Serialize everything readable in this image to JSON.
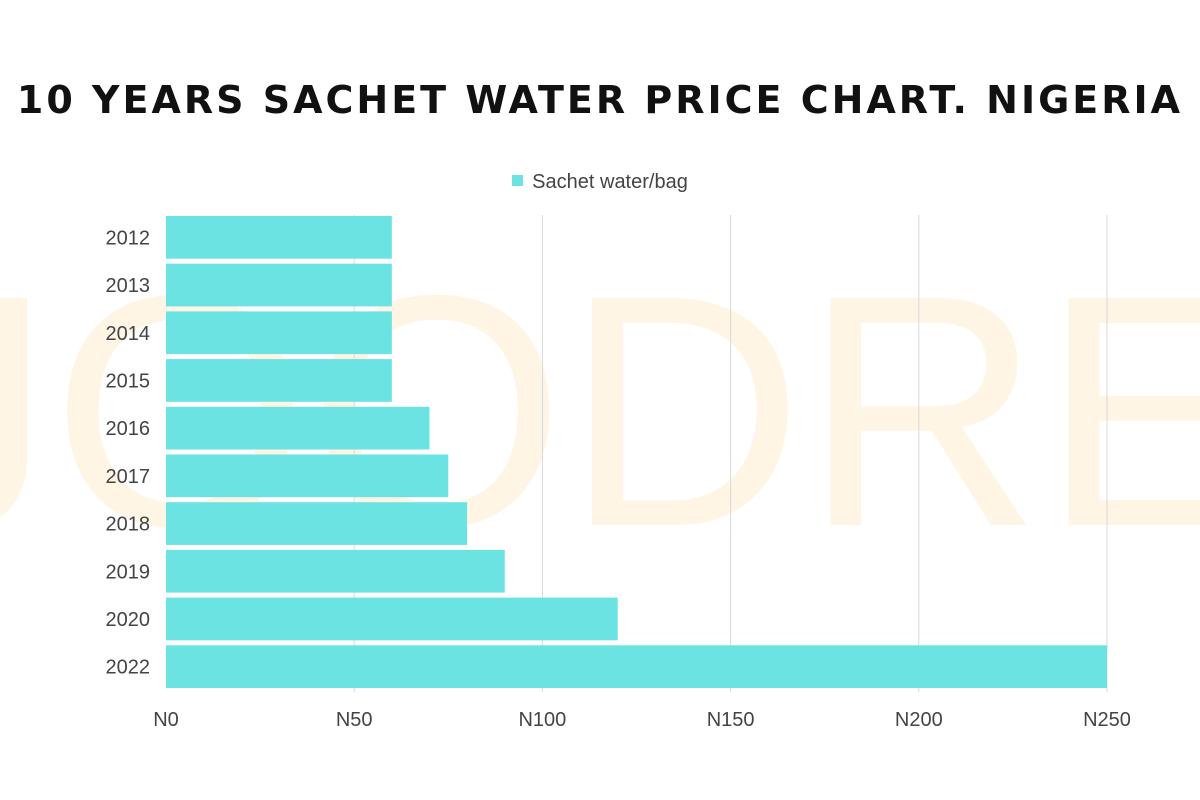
{
  "chart_data": {
    "type": "bar",
    "orientation": "horizontal",
    "title": "10 YEARS SACHET WATER PRICE CHART. NIGERIA",
    "categories": [
      "2012",
      "2013",
      "2014",
      "2015",
      "2016",
      "2017",
      "2018",
      "2019",
      "2020",
      "2022"
    ],
    "series": [
      {
        "name": "Sachet water/bag",
        "values": [
          60,
          60,
          60,
          60,
          70,
          75,
          80,
          90,
          120,
          250
        ]
      }
    ],
    "xlim": [
      0,
      250
    ],
    "x_ticks": [
      0,
      50,
      100,
      150,
      200,
      250
    ],
    "x_tick_labels": [
      "N0",
      "N50",
      "N100",
      "N150",
      "N200",
      "N250"
    ],
    "grid": "vertical",
    "legend_position": "top-center",
    "watermark": "JOODRE."
  },
  "colors": {
    "bar": "#6be3e3",
    "grid": "#d9d9d9",
    "watermark": "#fde9c4"
  }
}
